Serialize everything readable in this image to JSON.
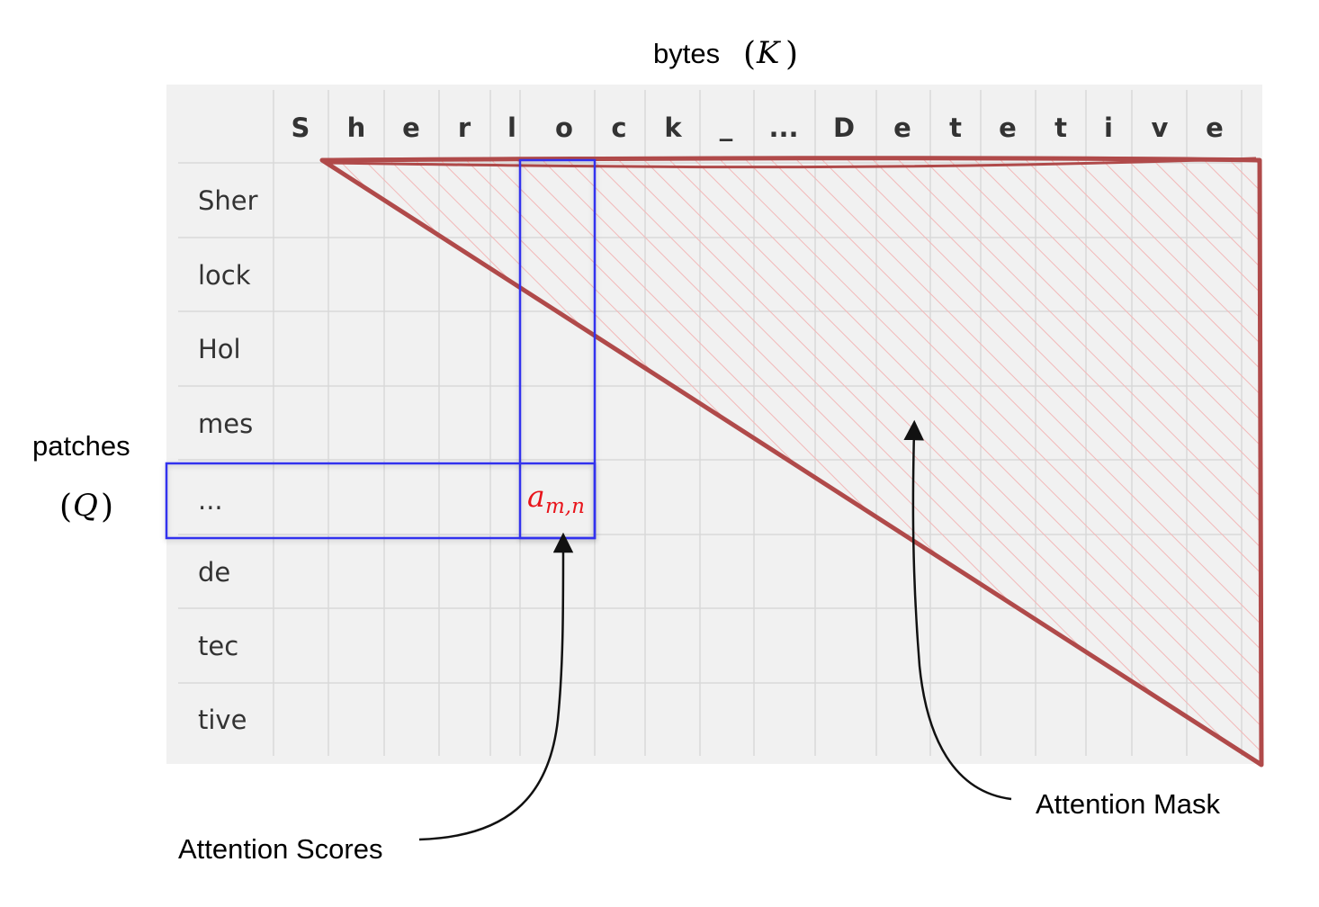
{
  "header": {
    "keys_label": "bytes",
    "keys_symbol": "K"
  },
  "side": {
    "queries_label": "patches",
    "queries_symbol": "Q"
  },
  "bytes": [
    "S",
    "h",
    "e",
    "r",
    "l",
    "o",
    "c",
    "k",
    "_",
    "...",
    "D",
    "e",
    "t",
    "e",
    "t",
    "i",
    "v",
    "e"
  ],
  "patches": [
    "Sher",
    "lock",
    "Hol",
    "mes",
    "...",
    "de",
    "tec",
    "tive"
  ],
  "cell": {
    "symbol": "a",
    "subscript": "m,n"
  },
  "annotations": {
    "scores": "Attention Scores",
    "mask": "Attention Mask"
  },
  "colors": {
    "grid_bg": "#f1f1f1",
    "grid_line": "#d9d9d9",
    "mask_stroke": "#b04a4a",
    "mask_hatch": "#f2b8b8",
    "highlight": "#3333ee",
    "cell_symbol": "#e8141b"
  }
}
